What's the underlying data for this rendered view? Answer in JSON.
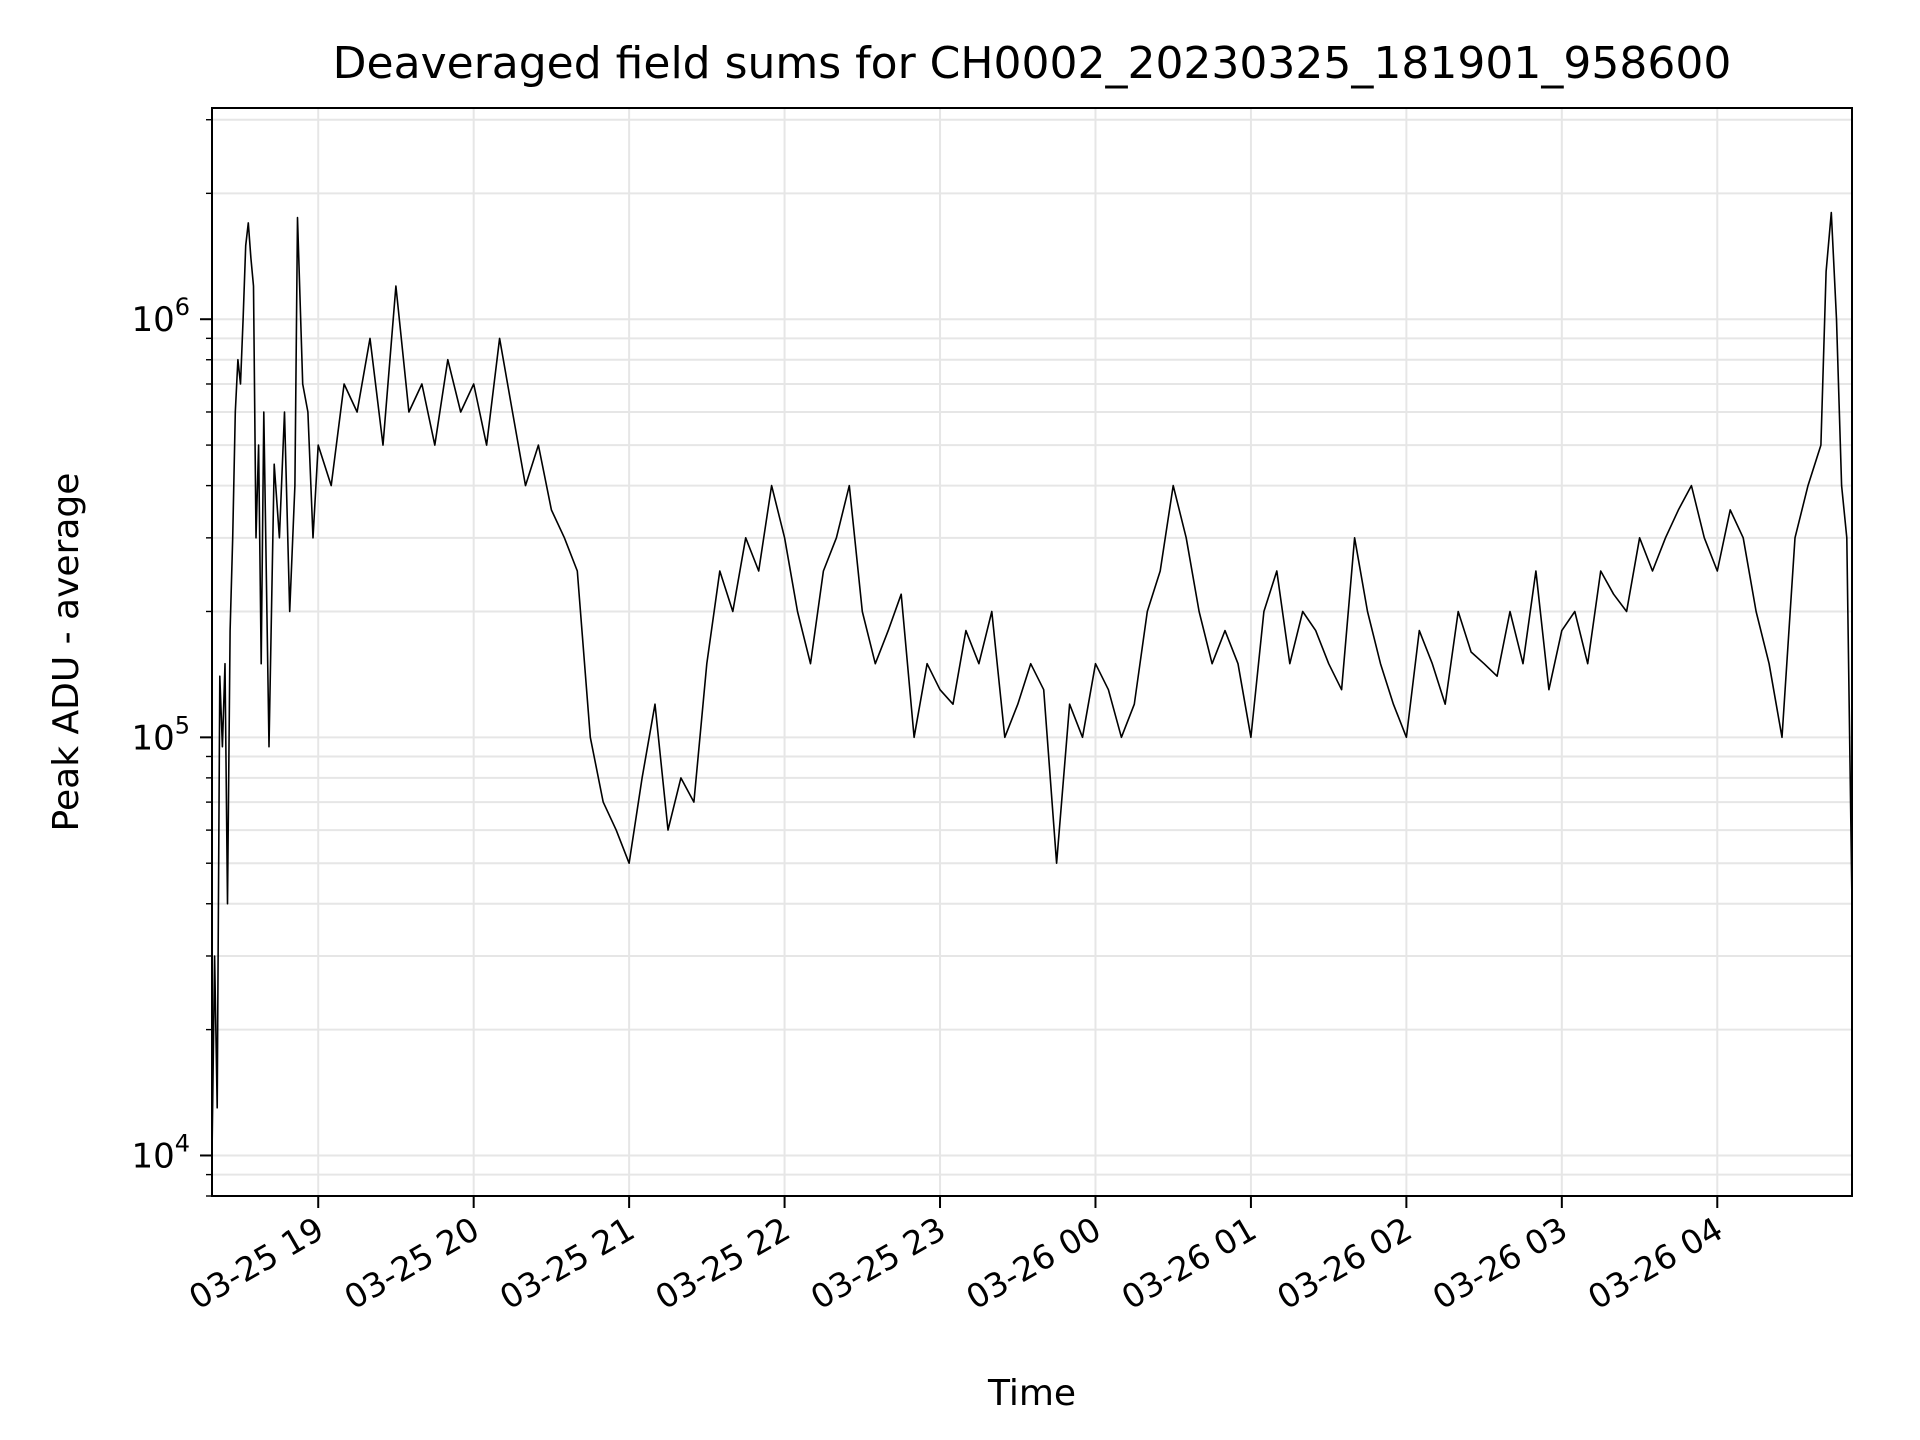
{
  "chart_data": {
    "type": "line",
    "title": "Deaveraged field sums for CH0002_20230325_181901_958600",
    "xlabel": "Time",
    "ylabel": "Peak ADU - average",
    "yscale": "log",
    "ylim": [
      8000,
      3200000
    ],
    "xlim": [
      "2023-03-25 18:19",
      "2023-03-26 04:52"
    ],
    "grid": true,
    "x_ticks": [
      {
        "value": "2023-03-25 19:00",
        "label": "03-25 19"
      },
      {
        "value": "2023-03-25 20:00",
        "label": "03-25 20"
      },
      {
        "value": "2023-03-25 21:00",
        "label": "03-25 21"
      },
      {
        "value": "2023-03-25 22:00",
        "label": "03-25 22"
      },
      {
        "value": "2023-03-25 23:00",
        "label": "03-25 23"
      },
      {
        "value": "2023-03-26 00:00",
        "label": "03-26 00"
      },
      {
        "value": "2023-03-26 01:00",
        "label": "03-26 01"
      },
      {
        "value": "2023-03-26 02:00",
        "label": "03-26 02"
      },
      {
        "value": "2023-03-26 03:00",
        "label": "03-26 03"
      },
      {
        "value": "2023-03-26 04:00",
        "label": "03-26 04"
      }
    ],
    "y_ticks": [
      {
        "value": 10000,
        "base": "10",
        "exp": "4"
      },
      {
        "value": 100000,
        "base": "10",
        "exp": "5"
      },
      {
        "value": 1000000,
        "base": "10",
        "exp": "6"
      }
    ],
    "series": [
      {
        "color": "#000000",
        "x": [
          "2023-03-25 18:19",
          "2023-03-25 18:20",
          "2023-03-25 18:21",
          "2023-03-25 18:22",
          "2023-03-25 18:23",
          "2023-03-25 18:24",
          "2023-03-25 18:25",
          "2023-03-25 18:26",
          "2023-03-25 18:27",
          "2023-03-25 18:28",
          "2023-03-25 18:29",
          "2023-03-25 18:30",
          "2023-03-25 18:31",
          "2023-03-25 18:32",
          "2023-03-25 18:33",
          "2023-03-25 18:34",
          "2023-03-25 18:35",
          "2023-03-25 18:36",
          "2023-03-25 18:37",
          "2023-03-25 18:38",
          "2023-03-25 18:39",
          "2023-03-25 18:41",
          "2023-03-25 18:43",
          "2023-03-25 18:45",
          "2023-03-25 18:47",
          "2023-03-25 18:49",
          "2023-03-25 18:51",
          "2023-03-25 18:52",
          "2023-03-25 18:54",
          "2023-03-25 18:56",
          "2023-03-25 18:58",
          "2023-03-25 19:00",
          "2023-03-25 19:05",
          "2023-03-25 19:10",
          "2023-03-25 19:15",
          "2023-03-25 19:20",
          "2023-03-25 19:25",
          "2023-03-25 19:30",
          "2023-03-25 19:35",
          "2023-03-25 19:40",
          "2023-03-25 19:45",
          "2023-03-25 19:50",
          "2023-03-25 19:55",
          "2023-03-25 20:00",
          "2023-03-25 20:05",
          "2023-03-25 20:10",
          "2023-03-25 20:15",
          "2023-03-25 20:20",
          "2023-03-25 20:25",
          "2023-03-25 20:30",
          "2023-03-25 20:35",
          "2023-03-25 20:40",
          "2023-03-25 20:45",
          "2023-03-25 20:50",
          "2023-03-25 20:55",
          "2023-03-25 21:00",
          "2023-03-25 21:05",
          "2023-03-25 21:10",
          "2023-03-25 21:15",
          "2023-03-25 21:20",
          "2023-03-25 21:25",
          "2023-03-25 21:30",
          "2023-03-25 21:35",
          "2023-03-25 21:40",
          "2023-03-25 21:45",
          "2023-03-25 21:50",
          "2023-03-25 21:55",
          "2023-03-25 22:00",
          "2023-03-25 22:05",
          "2023-03-25 22:10",
          "2023-03-25 22:15",
          "2023-03-25 22:20",
          "2023-03-25 22:25",
          "2023-03-25 22:30",
          "2023-03-25 22:35",
          "2023-03-25 22:40",
          "2023-03-25 22:45",
          "2023-03-25 22:50",
          "2023-03-25 22:55",
          "2023-03-25 23:00",
          "2023-03-25 23:05",
          "2023-03-25 23:10",
          "2023-03-25 23:15",
          "2023-03-25 23:20",
          "2023-03-25 23:25",
          "2023-03-25 23:30",
          "2023-03-25 23:35",
          "2023-03-25 23:40",
          "2023-03-25 23:45",
          "2023-03-25 23:50",
          "2023-03-25 23:55",
          "2023-03-26 00:00",
          "2023-03-26 00:05",
          "2023-03-26 00:10",
          "2023-03-26 00:15",
          "2023-03-26 00:20",
          "2023-03-26 00:25",
          "2023-03-26 00:30",
          "2023-03-26 00:35",
          "2023-03-26 00:40",
          "2023-03-26 00:45",
          "2023-03-26 00:50",
          "2023-03-26 00:55",
          "2023-03-26 01:00",
          "2023-03-26 01:05",
          "2023-03-26 01:10",
          "2023-03-26 01:15",
          "2023-03-26 01:20",
          "2023-03-26 01:25",
          "2023-03-26 01:30",
          "2023-03-26 01:35",
          "2023-03-26 01:40",
          "2023-03-26 01:45",
          "2023-03-26 01:50",
          "2023-03-26 01:55",
          "2023-03-26 02:00",
          "2023-03-26 02:05",
          "2023-03-26 02:10",
          "2023-03-26 02:15",
          "2023-03-26 02:20",
          "2023-03-26 02:25",
          "2023-03-26 02:30",
          "2023-03-26 02:35",
          "2023-03-26 02:40",
          "2023-03-26 02:45",
          "2023-03-26 02:50",
          "2023-03-26 02:55",
          "2023-03-26 03:00",
          "2023-03-26 03:05",
          "2023-03-26 03:10",
          "2023-03-26 03:15",
          "2023-03-26 03:20",
          "2023-03-26 03:25",
          "2023-03-26 03:30",
          "2023-03-26 03:35",
          "2023-03-26 03:40",
          "2023-03-26 03:45",
          "2023-03-26 03:50",
          "2023-03-26 03:55",
          "2023-03-26 04:00",
          "2023-03-26 04:05",
          "2023-03-26 04:10",
          "2023-03-26 04:15",
          "2023-03-26 04:20",
          "2023-03-26 04:25",
          "2023-03-26 04:30",
          "2023-03-26 04:35",
          "2023-03-26 04:40",
          "2023-03-26 04:42",
          "2023-03-26 04:44",
          "2023-03-26 04:46",
          "2023-03-26 04:48",
          "2023-03-26 04:50",
          "2023-03-26 04:52"
        ],
        "y": [
          10000,
          30000,
          13000,
          140000,
          95000,
          150000,
          40000,
          180000,
          300000,
          600000,
          800000,
          700000,
          1000000,
          1500000,
          1700000,
          1400000,
          1200000,
          300000,
          500000,
          150000,
          600000,
          95000,
          450000,
          300000,
          600000,
          200000,
          400000,
          1750000,
          700000,
          600000,
          300000,
          500000,
          400000,
          700000,
          600000,
          900000,
          500000,
          1200000,
          600000,
          700000,
          500000,
          800000,
          600000,
          700000,
          500000,
          900000,
          600000,
          400000,
          500000,
          350000,
          300000,
          250000,
          100000,
          70000,
          60000,
          50000,
          80000,
          120000,
          60000,
          80000,
          70000,
          150000,
          250000,
          200000,
          300000,
          250000,
          400000,
          300000,
          200000,
          150000,
          250000,
          300000,
          400000,
          200000,
          150000,
          180000,
          220000,
          100000,
          150000,
          130000,
          120000,
          180000,
          150000,
          200000,
          100000,
          120000,
          150000,
          130000,
          50000,
          120000,
          100000,
          150000,
          130000,
          100000,
          120000,
          200000,
          250000,
          400000,
          300000,
          200000,
          150000,
          180000,
          150000,
          100000,
          200000,
          250000,
          150000,
          200000,
          180000,
          150000,
          130000,
          300000,
          200000,
          150000,
          120000,
          100000,
          180000,
          150000,
          120000,
          200000,
          160000,
          150000,
          140000,
          200000,
          150000,
          250000,
          130000,
          180000,
          200000,
          150000,
          250000,
          220000,
          200000,
          300000,
          250000,
          300000,
          350000,
          400000,
          300000,
          250000,
          350000,
          300000,
          200000,
          150000,
          100000,
          300000,
          400000,
          500000,
          1300000,
          1800000,
          1000000,
          400000,
          300000,
          40000
        ]
      }
    ]
  }
}
